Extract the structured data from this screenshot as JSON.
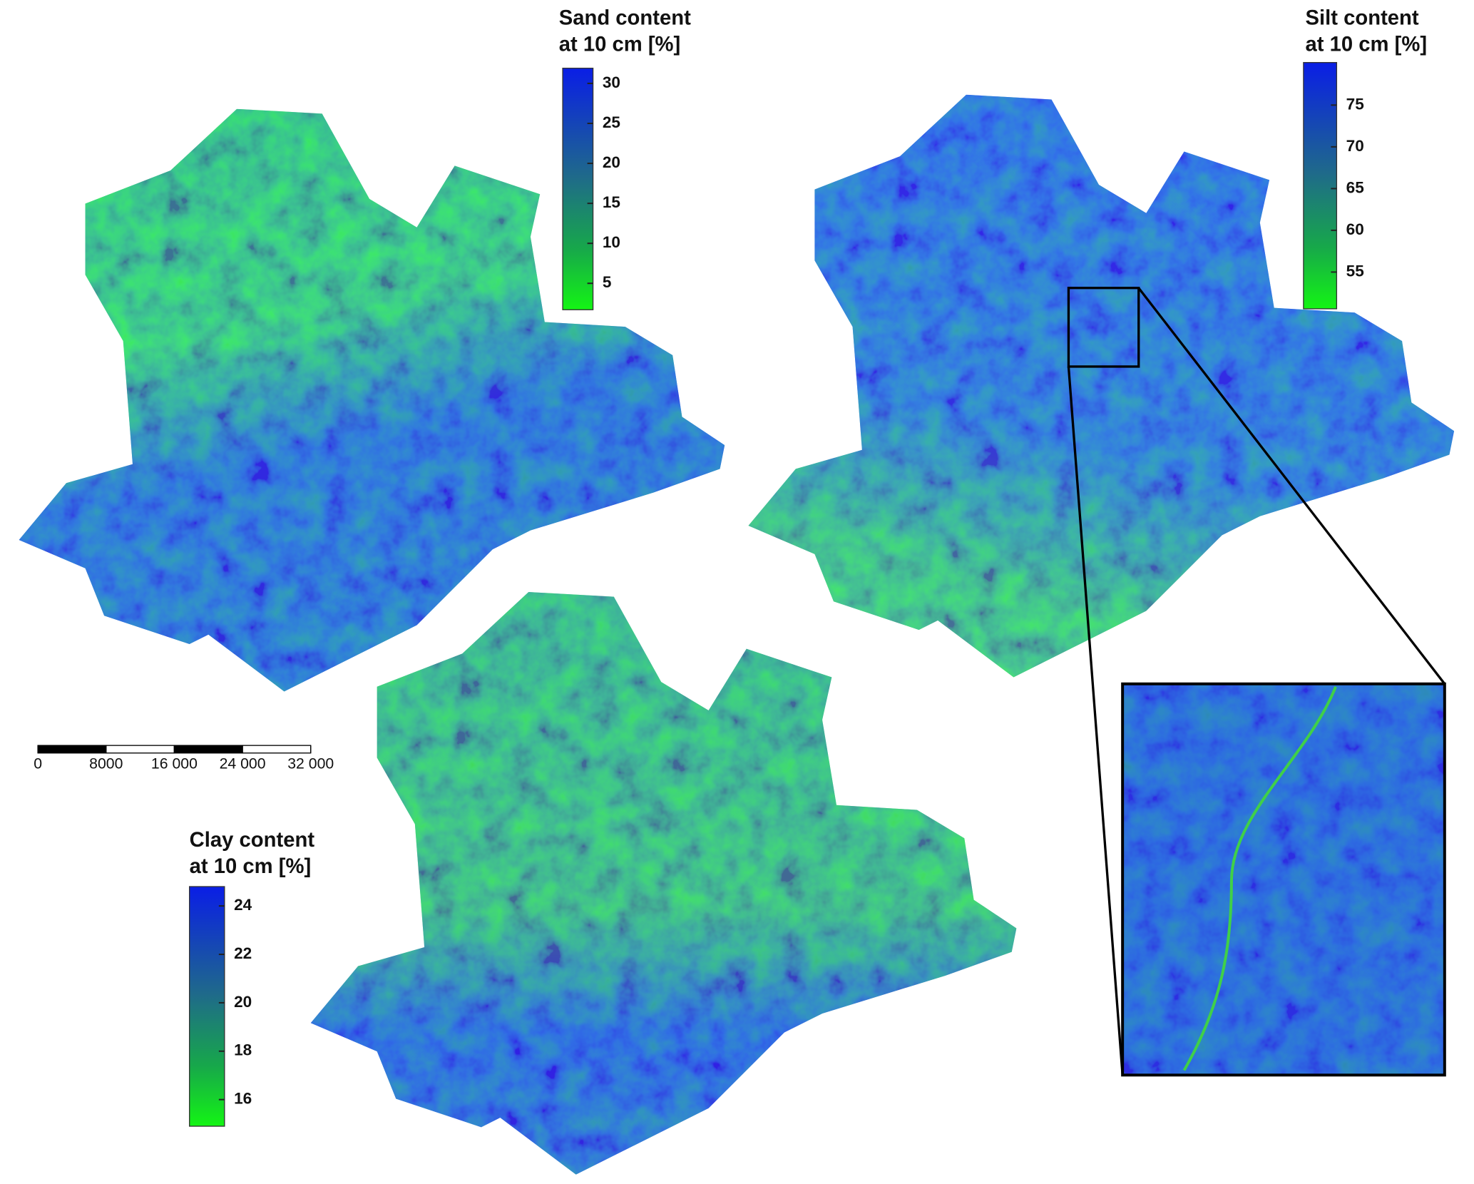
{
  "maps": [
    {
      "title_lines": [
        "Sand content",
        "at 10 cm [%]"
      ],
      "lim": [
        1.7,
        31.9
      ],
      "ticks": [
        5,
        10,
        15,
        20,
        25,
        30
      ]
    },
    {
      "title_lines": [
        "Silt content",
        "at 10 cm [%]"
      ],
      "lim": [
        50.6,
        80.1
      ],
      "ticks": [
        55,
        60,
        65,
        70,
        75
      ]
    },
    {
      "title_lines": [
        "Clay content",
        "at 10 cm [%]"
      ],
      "lim": [
        14.9,
        24.8
      ],
      "ticks": [
        16,
        18,
        20,
        22,
        24
      ]
    }
  ],
  "scale_bar": {
    "lim": [
      0,
      32000
    ],
    "ticks": [
      0,
      8000,
      {
        "value": 16000,
        "label": "16 000"
      },
      {
        "value": 24000,
        "label": "24 000"
      },
      {
        "value": 32000,
        "label": "32 000"
      }
    ]
  }
}
